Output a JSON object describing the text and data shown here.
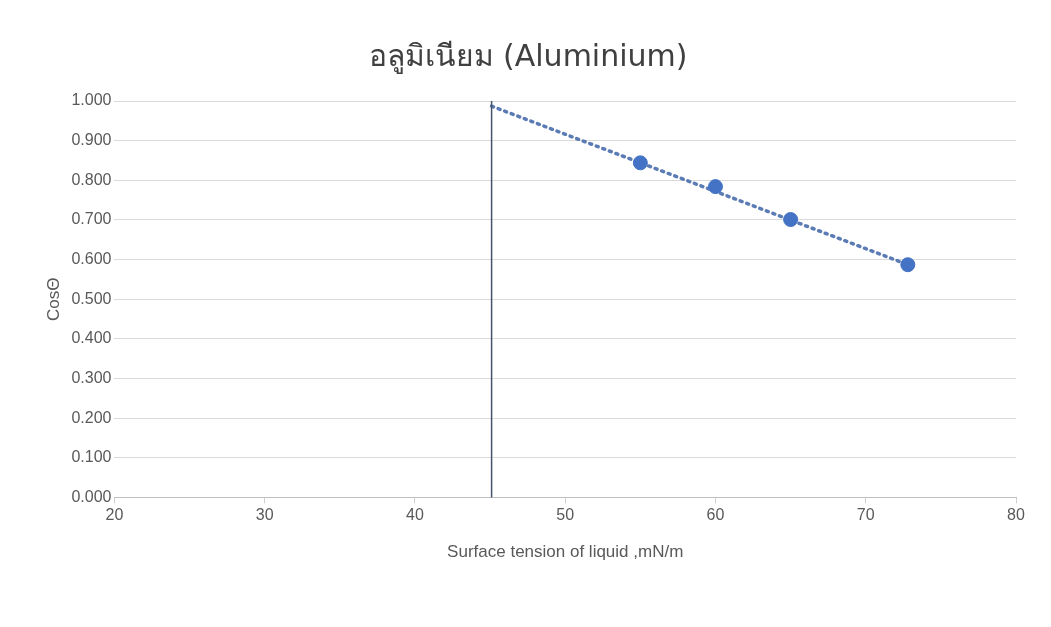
{
  "chart_data": {
    "type": "scatter",
    "title": "อลูมิเนียม (Aluminium)",
    "xlabel": "Surface tension of liquid ,mN/m",
    "ylabel": "CosΘ",
    "xlim": [
      20,
      80
    ],
    "xticks": [
      20,
      30,
      40,
      50,
      60,
      70,
      80
    ],
    "ylim": [
      0,
      1
    ],
    "yticks": [
      {
        "value": 0,
        "label": "0.000"
      },
      {
        "value": 0.1,
        "label": "0.100"
      },
      {
        "value": 0.2,
        "label": "0.200"
      },
      {
        "value": 0.3,
        "label": "0.300"
      },
      {
        "value": 0.4,
        "label": "0.400"
      },
      {
        "value": 0.5,
        "label": "0.500"
      },
      {
        "value": 0.6,
        "label": "0.600"
      },
      {
        "value": 0.7,
        "label": "0.700"
      },
      {
        "value": 0.8,
        "label": "0.800"
      },
      {
        "value": 0.9,
        "label": "0.900"
      },
      {
        "value": 1,
        "label": "1.000"
      }
    ],
    "grid": "y",
    "legend": false,
    "marker": "circle",
    "series": [
      {
        "color": "#4472c4",
        "x": [
          55,
          60,
          65,
          72.8
        ],
        "values": [
          0.844,
          0.784,
          0.701,
          0.587
        ]
      },
      {
        "type": "line",
        "color": "#5b7bb5",
        "line_style": "dotted",
        "marker": "none",
        "x": [
          45.1,
          72.8
        ],
        "values": [
          0.987,
          0.587
        ]
      }
    ],
    "ref_lines": [
      {
        "axis": "x",
        "value": 45.1,
        "color": "#44546a",
        "line_style": "solid"
      }
    ]
  }
}
